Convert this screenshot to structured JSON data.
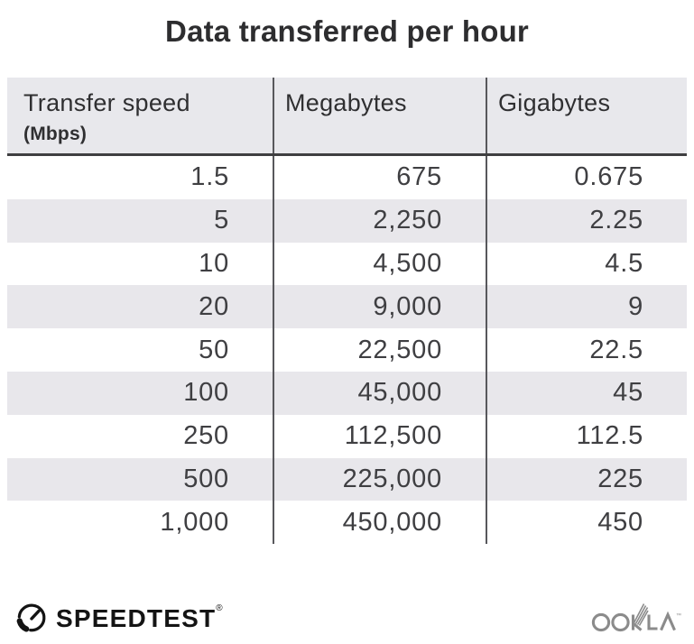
{
  "title": "Data transferred per hour",
  "table": {
    "columns": [
      {
        "label": "Transfer speed",
        "sublabel": "(Mbps)"
      },
      {
        "label": "Megabytes",
        "sublabel": ""
      },
      {
        "label": "Gigabytes",
        "sublabel": ""
      }
    ],
    "rows": [
      [
        "1.5",
        "675",
        "0.675"
      ],
      [
        "5",
        "2,250",
        "2.25"
      ],
      [
        "10",
        "4,500",
        "4.5"
      ],
      [
        "20",
        "9,000",
        "9"
      ],
      [
        "50",
        "22,500",
        "22.5"
      ],
      [
        "100",
        "45,000",
        "45"
      ],
      [
        "250",
        "112,500",
        "112.5"
      ],
      [
        "500",
        "225,000",
        "225"
      ],
      [
        "1,000",
        "450,000",
        "450"
      ]
    ]
  },
  "footer": {
    "speedtest_label": "SPEEDTEST",
    "speedtest_trademark": "®",
    "ookla_label": "OOKLA",
    "ookla_trademark": "™"
  },
  "colors": {
    "header_bg": "#e8e8ec",
    "alt_row_bg": "#e8e7eb",
    "divider": "#58585c",
    "header_rule": "#3f3f41",
    "body_text": "#3f3f42",
    "title_text": "#2d2d2f",
    "ookla_gray": "#8b8b8b",
    "logo_black": "#141414"
  },
  "chart_data": {
    "type": "table",
    "title": "Data transferred per hour",
    "columns": [
      "Transfer speed (Mbps)",
      "Megabytes",
      "Gigabytes"
    ],
    "rows": [
      [
        1.5,
        675,
        0.675
      ],
      [
        5,
        2250,
        2.25
      ],
      [
        10,
        4500,
        4.5
      ],
      [
        20,
        9000,
        9
      ],
      [
        50,
        22500,
        22.5
      ],
      [
        100,
        45000,
        45
      ],
      [
        250,
        112500,
        112.5
      ],
      [
        500,
        225000,
        225
      ],
      [
        1000,
        450000,
        450
      ]
    ],
    "layout": {
      "striped_rows": true,
      "column_dividers": true,
      "number_alignment": "right"
    }
  }
}
